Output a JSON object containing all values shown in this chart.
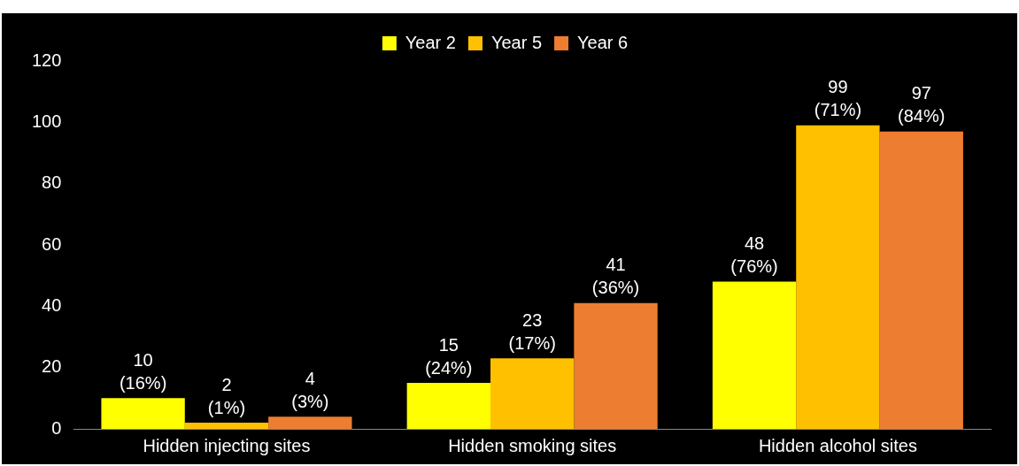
{
  "chart_data": {
    "type": "bar",
    "categories": [
      "Hidden injecting sites",
      "Hidden smoking sites",
      "Hidden alcohol sites"
    ],
    "series": [
      {
        "name": "Year 2",
        "color": "#ffff00",
        "values": [
          10,
          15,
          48
        ],
        "value_labels": [
          "10\n(16%)",
          "15\n(24%)",
          "48\n(76%)"
        ]
      },
      {
        "name": "Year 5",
        "color": "#ffc000",
        "values": [
          2,
          23,
          99
        ],
        "value_labels": [
          "2\n(1%)",
          "23\n(17%)",
          "99\n(71%)"
        ]
      },
      {
        "name": "Year 6",
        "color": "#ed7d31",
        "values": [
          4,
          41,
          97
        ],
        "value_labels": [
          "4\n(3%)",
          "41\n(36%)",
          "97\n(84%)"
        ]
      }
    ],
    "ylim": [
      0,
      120
    ],
    "yticks": [
      0,
      20,
      40,
      60,
      80,
      100,
      120
    ],
    "grid": false,
    "legend": "top"
  }
}
